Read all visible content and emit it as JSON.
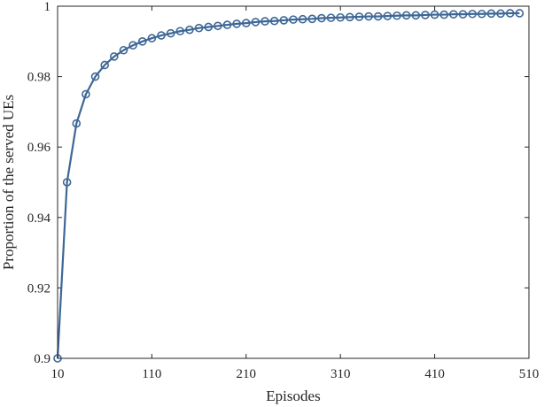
{
  "chart_data": {
    "type": "line",
    "title": "",
    "xlabel": "Episodes",
    "ylabel": "Proportion of the served UEs",
    "xlim": [
      10,
      510
    ],
    "ylim": [
      0.9,
      1.0
    ],
    "xticks": [
      10,
      110,
      210,
      310,
      410,
      510
    ],
    "xtick_labels": [
      "10",
      "110",
      "210",
      "310",
      "410",
      "510"
    ],
    "yticks": [
      0.9,
      0.92,
      0.94,
      0.96,
      0.98,
      1.0
    ],
    "ytick_labels": [
      "0.9",
      "0.92",
      "0.94",
      "0.96",
      "0.98",
      "1"
    ],
    "grid": false,
    "series": [
      {
        "color": "#3d6796",
        "marker": "circle",
        "x": [
          10,
          20,
          30,
          40,
          50,
          60,
          70,
          80,
          90,
          100,
          110,
          120,
          130,
          140,
          150,
          160,
          170,
          180,
          190,
          200,
          210,
          220,
          230,
          240,
          250,
          260,
          270,
          280,
          290,
          300,
          310,
          320,
          330,
          340,
          350,
          360,
          370,
          380,
          390,
          400,
          410,
          420,
          430,
          440,
          450,
          460,
          470,
          480,
          490,
          500
        ],
        "y": [
          0.9,
          0.95,
          0.9667,
          0.975,
          0.98,
          0.9833,
          0.9857,
          0.9875,
          0.9889,
          0.99,
          0.9909,
          0.9917,
          0.9923,
          0.9929,
          0.9933,
          0.9938,
          0.9941,
          0.9944,
          0.9947,
          0.995,
          0.9952,
          0.9955,
          0.9957,
          0.9958,
          0.996,
          0.9962,
          0.9963,
          0.9964,
          0.9966,
          0.9967,
          0.9968,
          0.9969,
          0.997,
          0.9971,
          0.9971,
          0.9972,
          0.9973,
          0.9974,
          0.9974,
          0.9975,
          0.9976,
          0.9976,
          0.9977,
          0.9977,
          0.9978,
          0.9978,
          0.9979,
          0.9979,
          0.998,
          0.998
        ]
      }
    ]
  }
}
